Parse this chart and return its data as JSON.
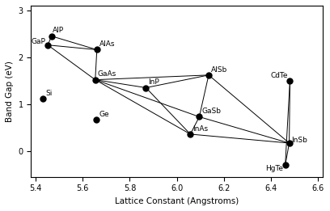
{
  "semiconductors": {
    "Si": {
      "a": 5.431,
      "Eg": 1.11
    },
    "Ge": {
      "a": 5.658,
      "Eg": 0.67
    },
    "GaP": {
      "a": 5.451,
      "Eg": 2.26
    },
    "AlP": {
      "a": 5.467,
      "Eg": 2.45
    },
    "AlAs": {
      "a": 5.66,
      "Eg": 2.16
    },
    "GaAs": {
      "a": 5.653,
      "Eg": 1.52
    },
    "InP": {
      "a": 5.869,
      "Eg": 1.35
    },
    "AlSb": {
      "a": 6.136,
      "Eg": 1.62
    },
    "GaSb": {
      "a": 6.096,
      "Eg": 0.73
    },
    "InAs": {
      "a": 6.058,
      "Eg": 0.36
    },
    "CdTe": {
      "a": 6.482,
      "Eg": 1.49
    },
    "InSb": {
      "a": 6.479,
      "Eg": 0.17
    },
    "HgTe": {
      "a": 6.462,
      "Eg": -0.3
    }
  },
  "connections": [
    [
      "GaP",
      "AlP"
    ],
    [
      "GaP",
      "AlAs"
    ],
    [
      "GaP",
      "GaAs"
    ],
    [
      "AlP",
      "AlAs"
    ],
    [
      "AlAs",
      "GaAs"
    ],
    [
      "GaAs",
      "InP"
    ],
    [
      "GaAs",
      "InAs"
    ],
    [
      "GaAs",
      "GaSb"
    ],
    [
      "GaAs",
      "AlSb"
    ],
    [
      "InP",
      "InAs"
    ],
    [
      "InP",
      "AlSb"
    ],
    [
      "InAs",
      "GaSb"
    ],
    [
      "InAs",
      "InSb"
    ],
    [
      "GaSb",
      "AlSb"
    ],
    [
      "GaSb",
      "InSb"
    ],
    [
      "AlSb",
      "InSb"
    ],
    [
      "CdTe",
      "InSb"
    ],
    [
      "CdTe",
      "HgTe"
    ],
    [
      "InSb",
      "HgTe"
    ]
  ],
  "label_offsets": {
    "Si": [
      0.01,
      0.04,
      "left"
    ],
    "Ge": [
      0.01,
      0.04,
      "left"
    ],
    "GaP": [
      -0.01,
      -0.01,
      "right"
    ],
    "AlP": [
      0.005,
      0.05,
      "left"
    ],
    "AlAs": [
      0.01,
      0.04,
      "left"
    ],
    "GaAs": [
      0.01,
      0.04,
      "left"
    ],
    "InP": [
      0.01,
      0.04,
      "left"
    ],
    "AlSb": [
      0.01,
      0.04,
      "left"
    ],
    "GaSb": [
      0.01,
      0.04,
      "left"
    ],
    "InAs": [
      0.01,
      0.04,
      "left"
    ],
    "CdTe": [
      -0.01,
      0.04,
      "right"
    ],
    "InSb": [
      0.01,
      -0.01,
      "left"
    ],
    "HgTe": [
      -0.01,
      -0.15,
      "right"
    ]
  },
  "xlim": [
    5.38,
    6.62
  ],
  "ylim": [
    -0.55,
    3.1
  ],
  "xlabel": "Lattice Constant (Angstroms)",
  "ylabel": "Band Gap (eV)",
  "xticks": [
    5.4,
    5.6,
    5.8,
    6.0,
    6.2,
    6.4,
    6.6
  ],
  "yticks": [
    0,
    1,
    2,
    3
  ],
  "marker_size": 5,
  "line_color": "black",
  "marker_color": "black",
  "fontsize_labels": 6.5,
  "fontsize_axis": 7.5
}
